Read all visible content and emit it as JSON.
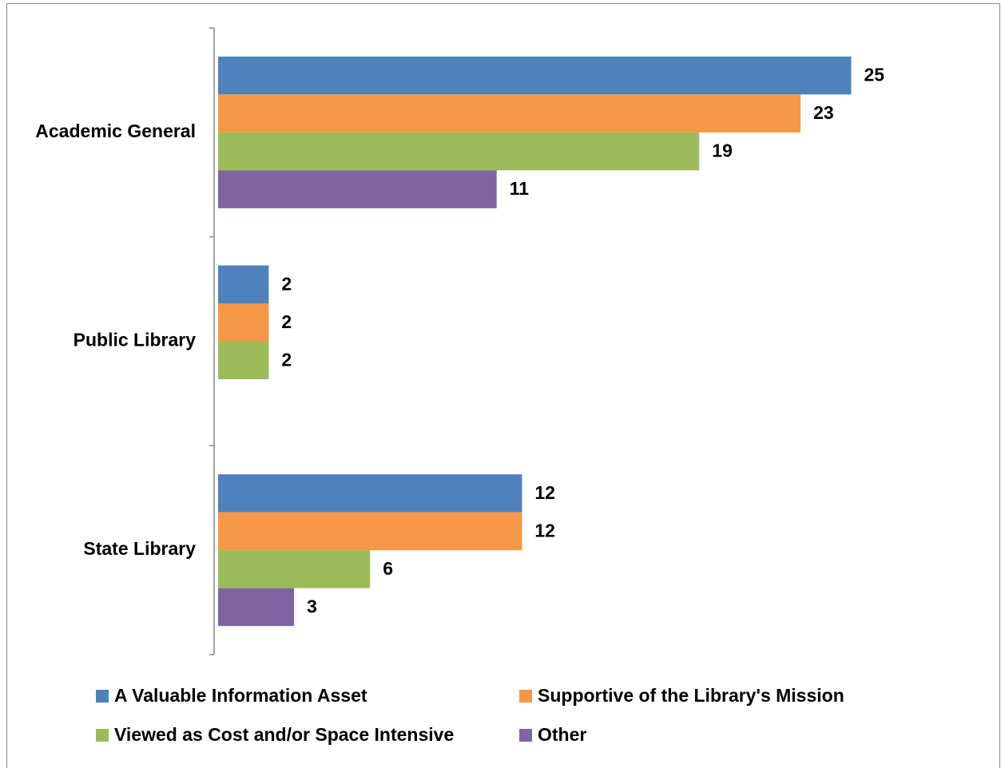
{
  "chart_data": {
    "type": "hbar",
    "categories": [
      "Academic General",
      "Public Library",
      "State Library"
    ],
    "series": [
      {
        "name": "A Valuable Information Asset",
        "color": "#4f81bd",
        "values": [
          25,
          2,
          12
        ]
      },
      {
        "name": "Supportive of the  Library's Mission",
        "color": "#f79646",
        "values": [
          23,
          2,
          12
        ]
      },
      {
        "name": "Viewed as Cost and/or Space Intensive",
        "color": "#9bbb59",
        "values": [
          19,
          2,
          6
        ]
      },
      {
        "name": "Other",
        "color": "#8064a2",
        "values": [
          11,
          null,
          3
        ]
      }
    ],
    "xlim": [
      0,
      30
    ]
  }
}
